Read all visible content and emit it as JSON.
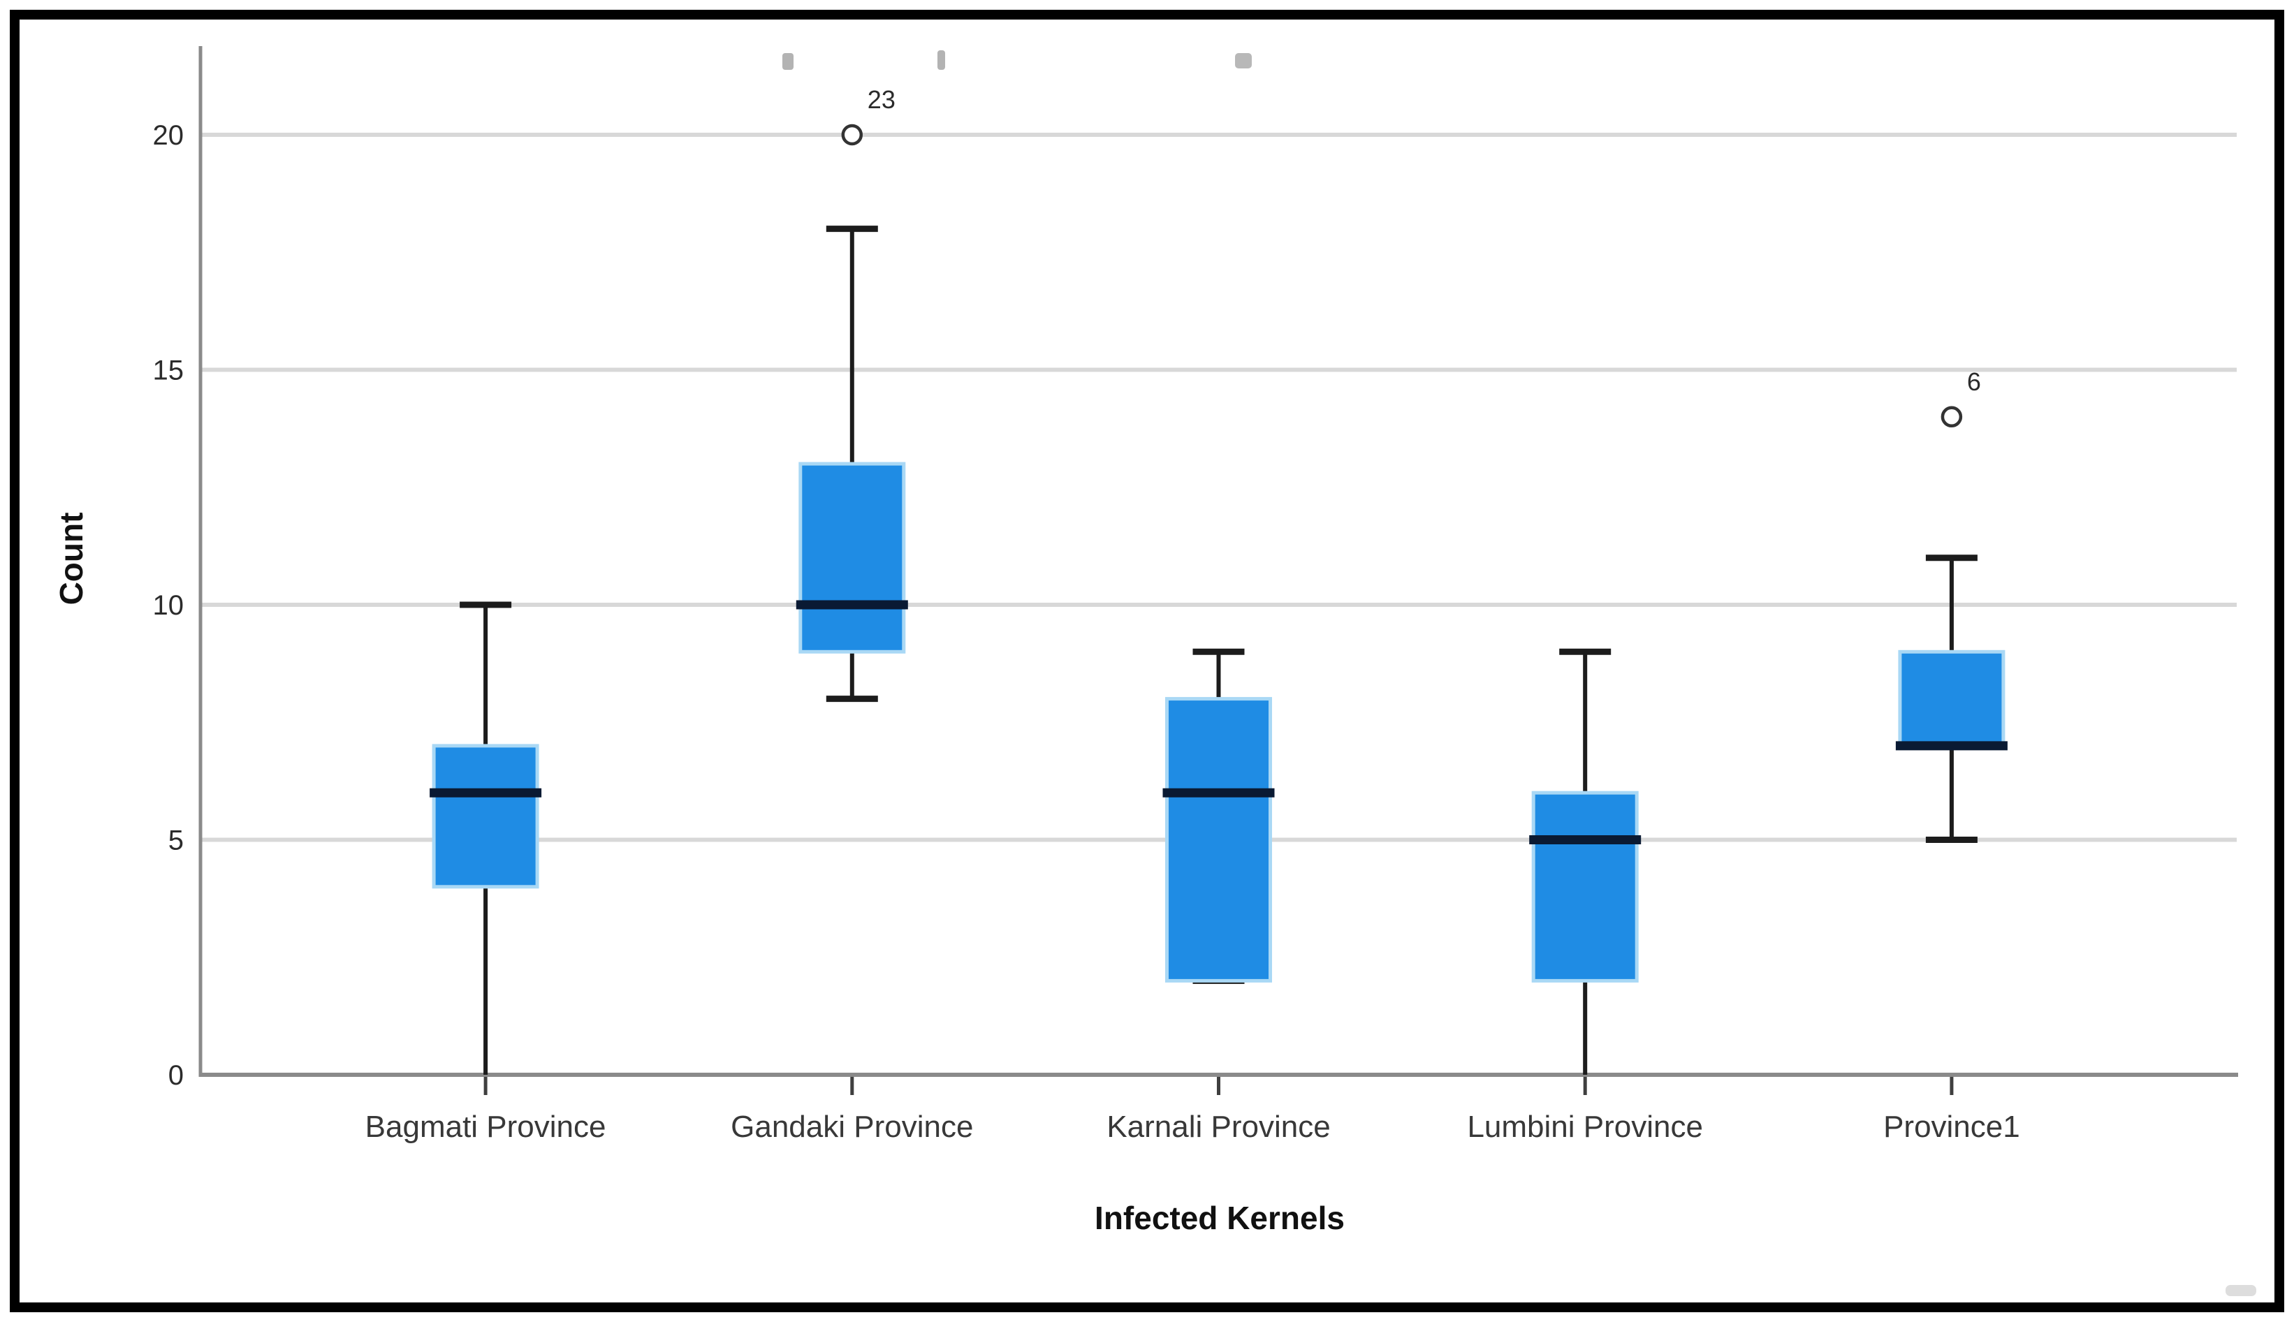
{
  "page": {
    "background": "#ffffff",
    "frame_color": "#000000"
  },
  "chart_data": {
    "type": "boxplot",
    "title": "",
    "xlabel": "Infected Kernels",
    "ylabel": "Count",
    "categories": [
      "Bagmati Province",
      "Gandaki Province",
      "Karnali Province",
      "Lumbini Province",
      "Province1"
    ],
    "y_ticks": [
      0,
      5,
      10,
      15,
      20
    ],
    "ylim": [
      0,
      22
    ],
    "grid": "horizontal-light-gray",
    "legend": "none",
    "series": [
      {
        "label": "Bagmati Province",
        "whisker_low": 0,
        "q1": 4,
        "median": 6,
        "q3": 7,
        "whisker_high": 10,
        "outliers": []
      },
      {
        "label": "Gandaki Province",
        "whisker_low": 8,
        "q1": 9,
        "median": 10,
        "q3": 13,
        "whisker_high": 18,
        "outliers": [
          {
            "value": 20,
            "label": "23"
          }
        ]
      },
      {
        "label": "Karnali Province",
        "whisker_low": 2,
        "q1": 2,
        "median": 6,
        "q3": 8,
        "whisker_high": 9,
        "outliers": []
      },
      {
        "label": "Lumbini Province",
        "whisker_low": 0,
        "q1": 2,
        "median": 5,
        "q3": 6,
        "whisker_high": 9,
        "outliers": []
      },
      {
        "label": "Province1",
        "whisker_low": 5,
        "q1": 7,
        "median": 7,
        "q3": 9,
        "whisker_high": 11,
        "outliers": [
          {
            "value": 14,
            "label": "6"
          }
        ]
      }
    ],
    "colors": {
      "box_fill": "#1F8CE4",
      "box_halo": "#A9D8F5",
      "median_line": "#0A1A33",
      "whisker": "#1C1C1C",
      "gridline": "#D8D8D8",
      "axis_line": "#8A8A8A",
      "tick_label": "#2B2B2B",
      "category_label": "#383838",
      "axis_title": "#111111",
      "outlier_stroke": "#333333"
    }
  }
}
